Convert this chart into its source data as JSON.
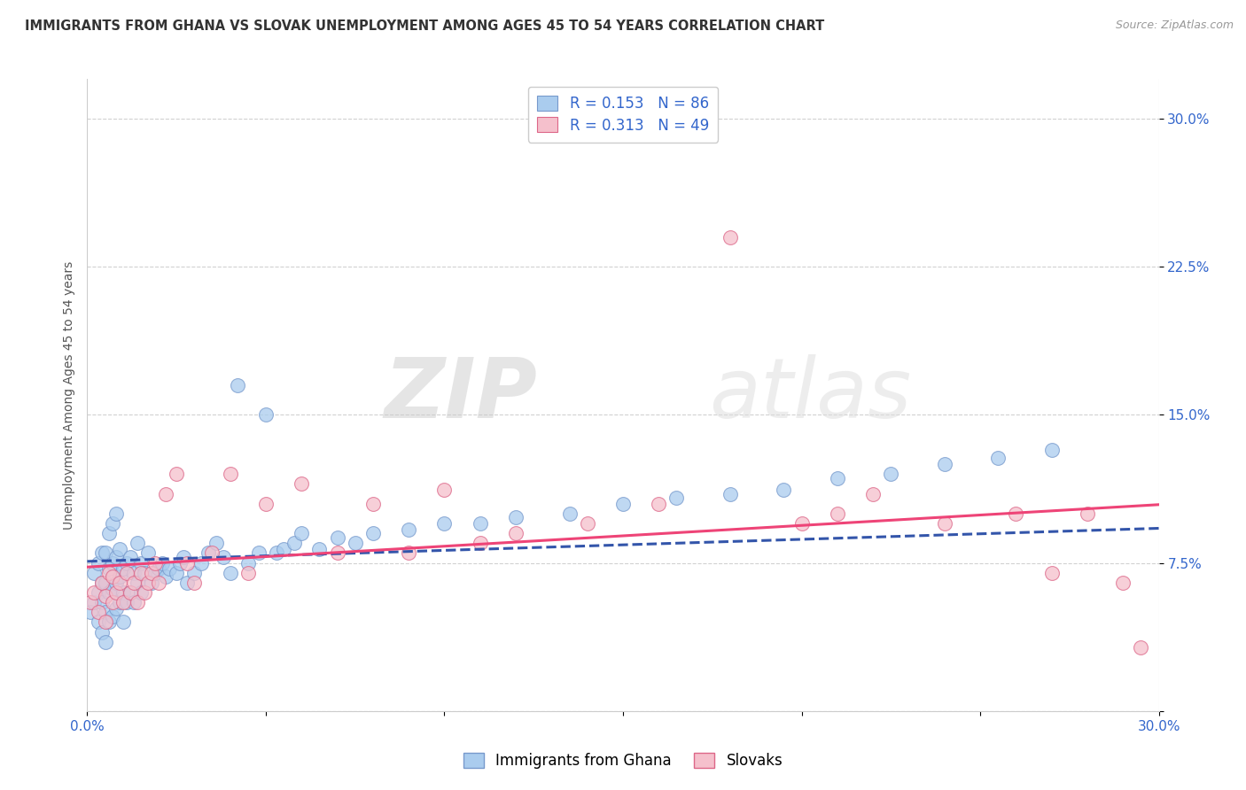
{
  "title": "IMMIGRANTS FROM GHANA VS SLOVAK UNEMPLOYMENT AMONG AGES 45 TO 54 YEARS CORRELATION CHART",
  "source": "Source: ZipAtlas.com",
  "ylabel": "Unemployment Among Ages 45 to 54 years",
  "xlim": [
    0.0,
    0.3
  ],
  "ylim": [
    0.0,
    0.32
  ],
  "xticks": [
    0.0,
    0.05,
    0.1,
    0.15,
    0.2,
    0.25,
    0.3
  ],
  "xtick_labels": [
    "0.0%",
    "",
    "",
    "",
    "",
    "",
    "30.0%"
  ],
  "yticks": [
    0.0,
    0.075,
    0.15,
    0.225,
    0.3
  ],
  "ytick_labels": [
    "",
    "7.5%",
    "15.0%",
    "22.5%",
    "30.0%"
  ],
  "legend_blue_label": "Immigrants from Ghana",
  "legend_pink_label": "Slovaks",
  "R_blue": 0.153,
  "N_blue": 86,
  "R_pink": 0.313,
  "N_pink": 49,
  "blue_color": "#aaccee",
  "blue_edge_color": "#7799cc",
  "blue_line_color": "#3355aa",
  "pink_color": "#f5c0cc",
  "pink_edge_color": "#dd6688",
  "pink_line_color": "#ee4477",
  "watermark_zip": "ZIP",
  "watermark_atlas": "atlas",
  "title_fontsize": 10.5,
  "axis_label_fontsize": 10,
  "tick_fontsize": 11,
  "legend_fontsize": 12,
  "blue_scatter_x": [
    0.001,
    0.002,
    0.002,
    0.003,
    0.003,
    0.003,
    0.004,
    0.004,
    0.004,
    0.004,
    0.005,
    0.005,
    0.005,
    0.005,
    0.006,
    0.006,
    0.006,
    0.006,
    0.007,
    0.007,
    0.007,
    0.007,
    0.008,
    0.008,
    0.008,
    0.008,
    0.009,
    0.009,
    0.009,
    0.01,
    0.01,
    0.01,
    0.011,
    0.011,
    0.012,
    0.012,
    0.013,
    0.013,
    0.014,
    0.014,
    0.015,
    0.015,
    0.016,
    0.017,
    0.018,
    0.019,
    0.02,
    0.021,
    0.022,
    0.023,
    0.025,
    0.026,
    0.027,
    0.028,
    0.03,
    0.032,
    0.034,
    0.036,
    0.038,
    0.04,
    0.042,
    0.045,
    0.048,
    0.05,
    0.053,
    0.055,
    0.058,
    0.06,
    0.065,
    0.07,
    0.075,
    0.08,
    0.09,
    0.1,
    0.11,
    0.12,
    0.135,
    0.15,
    0.165,
    0.18,
    0.195,
    0.21,
    0.225,
    0.24,
    0.255,
    0.27
  ],
  "blue_scatter_y": [
    0.05,
    0.055,
    0.07,
    0.045,
    0.06,
    0.075,
    0.04,
    0.055,
    0.065,
    0.08,
    0.035,
    0.05,
    0.065,
    0.08,
    0.045,
    0.06,
    0.072,
    0.09,
    0.048,
    0.062,
    0.075,
    0.095,
    0.052,
    0.065,
    0.078,
    0.1,
    0.055,
    0.068,
    0.082,
    0.045,
    0.06,
    0.072,
    0.055,
    0.075,
    0.06,
    0.078,
    0.055,
    0.07,
    0.065,
    0.085,
    0.06,
    0.075,
    0.07,
    0.08,
    0.065,
    0.07,
    0.072,
    0.075,
    0.068,
    0.072,
    0.07,
    0.075,
    0.078,
    0.065,
    0.07,
    0.075,
    0.08,
    0.085,
    0.078,
    0.07,
    0.165,
    0.075,
    0.08,
    0.15,
    0.08,
    0.082,
    0.085,
    0.09,
    0.082,
    0.088,
    0.085,
    0.09,
    0.092,
    0.095,
    0.095,
    0.098,
    0.1,
    0.105,
    0.108,
    0.11,
    0.112,
    0.118,
    0.12,
    0.125,
    0.128,
    0.132
  ],
  "pink_scatter_x": [
    0.001,
    0.002,
    0.003,
    0.004,
    0.005,
    0.005,
    0.006,
    0.007,
    0.007,
    0.008,
    0.009,
    0.01,
    0.011,
    0.012,
    0.013,
    0.014,
    0.015,
    0.016,
    0.017,
    0.018,
    0.019,
    0.02,
    0.022,
    0.025,
    0.028,
    0.03,
    0.035,
    0.04,
    0.045,
    0.05,
    0.06,
    0.07,
    0.08,
    0.09,
    0.1,
    0.11,
    0.12,
    0.14,
    0.16,
    0.18,
    0.2,
    0.21,
    0.22,
    0.24,
    0.26,
    0.27,
    0.28,
    0.29,
    0.295
  ],
  "pink_scatter_y": [
    0.055,
    0.06,
    0.05,
    0.065,
    0.045,
    0.058,
    0.07,
    0.055,
    0.068,
    0.06,
    0.065,
    0.055,
    0.07,
    0.06,
    0.065,
    0.055,
    0.07,
    0.06,
    0.065,
    0.07,
    0.075,
    0.065,
    0.11,
    0.12,
    0.075,
    0.065,
    0.08,
    0.12,
    0.07,
    0.105,
    0.115,
    0.08,
    0.105,
    0.08,
    0.112,
    0.085,
    0.09,
    0.095,
    0.105,
    0.24,
    0.095,
    0.1,
    0.11,
    0.095,
    0.1,
    0.07,
    0.1,
    0.065,
    0.032
  ]
}
